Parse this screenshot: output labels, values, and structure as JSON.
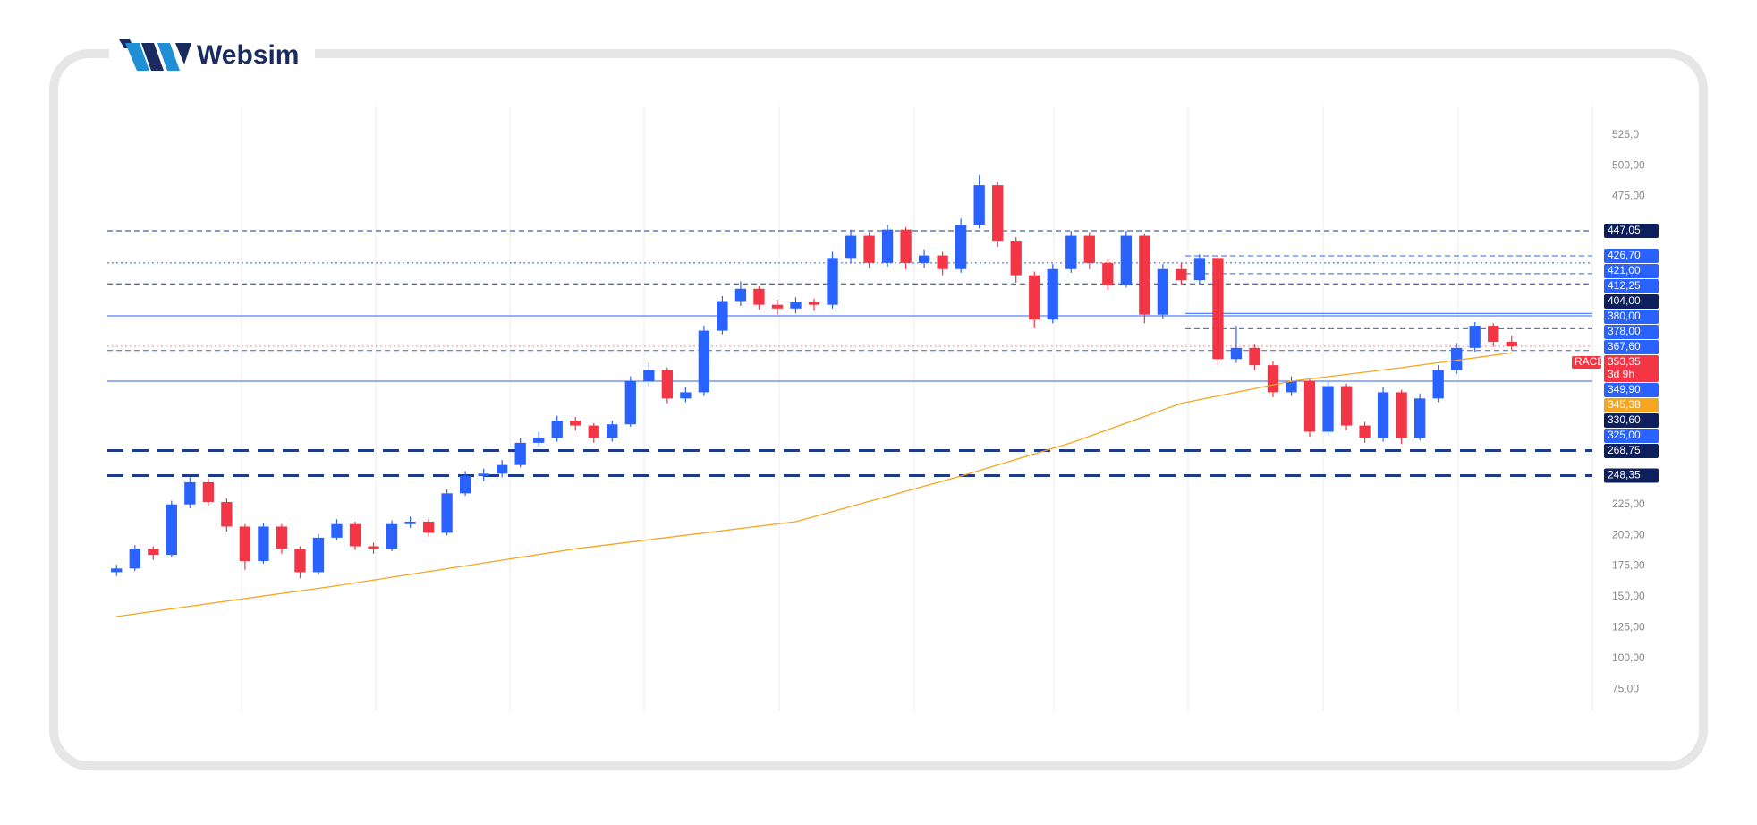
{
  "brand": "Websim",
  "chart_data": {
    "type": "candlestick",
    "symbol": "RACE",
    "countdown": "3d 9h",
    "up_color": "#2962ff",
    "down_color": "#f23645",
    "open": [
      170,
      173,
      189,
      184,
      225,
      243,
      227,
      207,
      179,
      207,
      189,
      170,
      198,
      209,
      191,
      189,
      209,
      211,
      202,
      234,
      248,
      250,
      257,
      275,
      279,
      293,
      289,
      279,
      290,
      325,
      334,
      311,
      316,
      366,
      390,
      400,
      387,
      384,
      389,
      387,
      425,
      443,
      421,
      448,
      421,
      427,
      416,
      452,
      484,
      439,
      411,
      375,
      416,
      443,
      421,
      403,
      443,
      379,
      416,
      407,
      425,
      343,
      352,
      338,
      316,
      325,
      284,
      321,
      289,
      279,
      316,
      279,
      311,
      334,
      352,
      370,
      357
    ],
    "high": [
      176,
      192,
      191,
      228,
      247,
      246,
      230,
      209,
      210,
      209,
      191,
      201,
      213,
      211,
      194,
      212,
      215,
      213,
      237,
      252,
      254,
      261,
      279,
      284,
      297,
      296,
      291,
      293,
      329,
      340,
      336,
      320,
      370,
      394,
      406,
      402,
      391,
      393,
      392,
      430,
      448,
      446,
      452,
      450,
      432,
      430,
      457,
      492,
      487,
      442,
      414,
      420,
      447,
      446,
      424,
      447,
      445,
      420,
      421,
      428,
      427,
      370,
      355,
      341,
      329,
      327,
      325,
      323,
      292,
      320,
      318,
      315,
      338,
      356,
      373,
      372,
      362
    ],
    "low": [
      167,
      171,
      180,
      182,
      222,
      224,
      203,
      172,
      177,
      185,
      165,
      168,
      196,
      188,
      185,
      187,
      206,
      199,
      200,
      232,
      244,
      247,
      255,
      272,
      276,
      285,
      275,
      276,
      288,
      321,
      307,
      308,
      313,
      363,
      386,
      383,
      379,
      380,
      382,
      384,
      421,
      417,
      418,
      416,
      417,
      411,
      413,
      449,
      434,
      405,
      368,
      372,
      413,
      416,
      399,
      401,
      372,
      376,
      403,
      404,
      338,
      340,
      334,
      312,
      313,
      280,
      281,
      285,
      275,
      276,
      274,
      277,
      308,
      331,
      349,
      353,
      350
    ],
    "close": [
      173,
      189,
      184,
      225,
      243,
      227,
      207,
      179,
      207,
      189,
      170,
      198,
      209,
      191,
      189,
      209,
      211,
      202,
      234,
      248,
      250,
      257,
      275,
      279,
      293,
      289,
      279,
      290,
      325,
      334,
      311,
      316,
      366,
      390,
      400,
      387,
      384,
      389,
      387,
      425,
      443,
      421,
      448,
      421,
      427,
      416,
      452,
      484,
      439,
      411,
      375,
      416,
      443,
      421,
      403,
      443,
      379,
      416,
      407,
      425,
      343,
      352,
      338,
      316,
      325,
      284,
      321,
      289,
      279,
      316,
      279,
      311,
      334,
      352,
      370,
      357,
      353.35
    ],
    "moving_average": {
      "color": "#f5a623",
      "x": [
        0,
        12,
        25,
        37,
        46,
        52,
        58,
        64,
        70,
        76
      ],
      "values": [
        134,
        159,
        189,
        211,
        248,
        275,
        307,
        325,
        336,
        348
      ]
    },
    "ylim": [
      57,
      548
    ],
    "yticks": [
      {
        "value": 525,
        "label": "525,0"
      },
      {
        "value": 500,
        "label": "500,00"
      },
      {
        "value": 475,
        "label": "475,00"
      },
      {
        "value": 225,
        "label": "225,00"
      },
      {
        "value": 200,
        "label": "200,00"
      },
      {
        "value": 175,
        "label": "175,00"
      },
      {
        "value": 150,
        "label": "150,00"
      },
      {
        "value": 125,
        "label": "125,00"
      },
      {
        "value": 100,
        "label": "100,00"
      },
      {
        "value": 75,
        "label": "75,00"
      }
    ],
    "levels": [
      {
        "value": 447.05,
        "label": "447,05",
        "color": "#0d1f5c",
        "style": "dashed"
      },
      {
        "value": 426.7,
        "label": "426,70",
        "color": "#2962ff",
        "style": "dashed-short"
      },
      {
        "value": 421,
        "label": "421,00",
        "color": "#2962ff",
        "style": "dotted"
      },
      {
        "value": 412.25,
        "label": "412,25",
        "color": "#2962ff",
        "style": "dashed-short"
      },
      {
        "value": 404,
        "label": "404,00",
        "color": "#0d1f5c",
        "style": "dashed"
      },
      {
        "value": 380,
        "label": "380,00",
        "color": "#2962ff",
        "style": "solid-short"
      },
      {
        "value": 378,
        "label": "378,00",
        "color": "#2962ff",
        "style": "solid"
      },
      {
        "value": 367.6,
        "label": "367,60",
        "color": "#2962ff",
        "style": "dashed-short"
      },
      {
        "value": 353.35,
        "label": "353,35",
        "color": "#f23645",
        "style": "dotted"
      },
      {
        "value": 349.9,
        "label": "349,90",
        "color": "#2962ff",
        "style": "dashed"
      },
      {
        "value": 345.38,
        "label": "345,38",
        "color": "#f5a623",
        "style": "none"
      },
      {
        "value": 330.6,
        "label": "330,60",
        "color": "#0d1f5c",
        "style": "none"
      },
      {
        "value": 325,
        "label": "325,00",
        "color": "#2962ff",
        "style": "solid"
      },
      {
        "value": 268.75,
        "label": "268,75",
        "color": "#0d1f5c",
        "style": "thick-dashed"
      },
      {
        "value": 248.35,
        "label": "248,35",
        "color": "#0d1f5c",
        "style": "thick-dashed"
      }
    ]
  }
}
